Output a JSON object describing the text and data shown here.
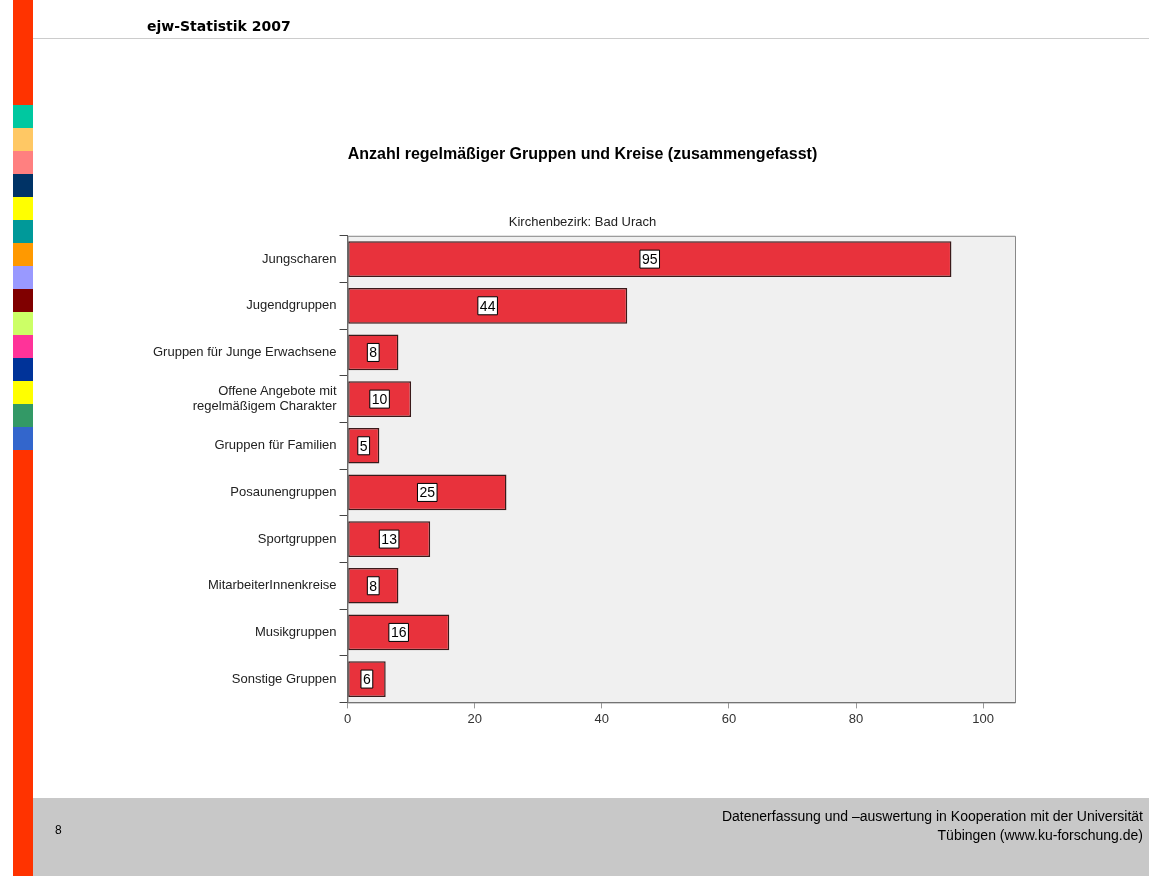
{
  "chart_data": {
    "type": "bar",
    "orientation": "horizontal",
    "title": "Anzahl regelmäßiger Gruppen und Kreise (zusammengefasst)",
    "subtitle": "Kirchenbezirk: Bad Urach",
    "categories": [
      "Jungscharen",
      "Jugendgruppen",
      "Gruppen für Junge Erwachsene",
      "Offene Angebote mit regelmäßigem Charakter",
      "Gruppen für Familien",
      "Posaunengruppen",
      "Sportgruppen",
      "MitarbeiterInnenkreise",
      "Musikgruppen",
      "Sonstige Gruppen"
    ],
    "values": [
      95,
      44,
      8,
      10,
      5,
      25,
      13,
      8,
      16,
      6
    ],
    "color": "#e8323c",
    "xlim": [
      0,
      105
    ],
    "xticks": [
      0,
      20,
      40,
      60,
      80,
      100
    ],
    "grid": false,
    "legend": false,
    "data_labels": true,
    "annotations": [
      "ejw-Statistik 2007",
      "8",
      "Datenerfassung und –auswertung in Kooperation mit der Universität Tübingen (www.ku-forschung.de)"
    ]
  }
}
